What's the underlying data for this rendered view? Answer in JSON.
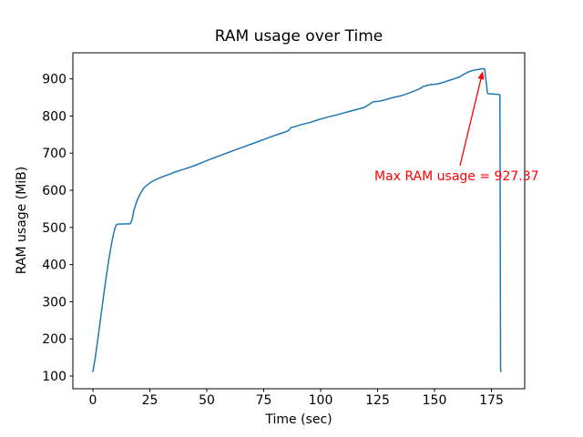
{
  "chart_data": {
    "type": "line",
    "title": "RAM usage over Time",
    "xlabel": "Time (sec)",
    "ylabel": "RAM usage (MiB)",
    "x_ticks": [
      0,
      25,
      50,
      75,
      100,
      125,
      150,
      175
    ],
    "y_ticks": [
      100,
      200,
      300,
      400,
      500,
      600,
      700,
      800,
      900
    ],
    "xlim": [
      -8.8,
      189.6
    ],
    "ylim": [
      65.7,
      970.2
    ],
    "grid": false,
    "legend": "none",
    "background_color": "#ffffff",
    "spine_color": "#000000",
    "series": [
      {
        "name": "RAM usage",
        "color": "#1f77b4",
        "points": [
          [
            0,
            112
          ],
          [
            1,
            148
          ],
          [
            2,
            192
          ],
          [
            3,
            238
          ],
          [
            4,
            284
          ],
          [
            5,
            330
          ],
          [
            6,
            374
          ],
          [
            7,
            414
          ],
          [
            8,
            450
          ],
          [
            9,
            482
          ],
          [
            10,
            504
          ],
          [
            10.6,
            509
          ],
          [
            16.4,
            510
          ],
          [
            17.2,
            521
          ],
          [
            18,
            546
          ],
          [
            19,
            566
          ],
          [
            20,
            581
          ],
          [
            21,
            593
          ],
          [
            22,
            603
          ],
          [
            23,
            610
          ],
          [
            24,
            615
          ],
          [
            25,
            620
          ],
          [
            27,
            627
          ],
          [
            30,
            635
          ],
          [
            33,
            642
          ],
          [
            36,
            649
          ],
          [
            40,
            657
          ],
          [
            44,
            665
          ],
          [
            48,
            675
          ],
          [
            52,
            685
          ],
          [
            56,
            694
          ],
          [
            60,
            703
          ],
          [
            64,
            712
          ],
          [
            68,
            721
          ],
          [
            72,
            730
          ],
          [
            76,
            739
          ],
          [
            80,
            748
          ],
          [
            84,
            756
          ],
          [
            86,
            761
          ],
          [
            87,
            769
          ],
          [
            89,
            772
          ],
          [
            91,
            776
          ],
          [
            95,
            782
          ],
          [
            99,
            790
          ],
          [
            103,
            797
          ],
          [
            107,
            803
          ],
          [
            110,
            808
          ],
          [
            113,
            813
          ],
          [
            116,
            818
          ],
          [
            119,
            823
          ],
          [
            121,
            830
          ],
          [
            123,
            838
          ],
          [
            126,
            840
          ],
          [
            129,
            845
          ],
          [
            132,
            850
          ],
          [
            135,
            854
          ],
          [
            137,
            858
          ],
          [
            139,
            862
          ],
          [
            141,
            867
          ],
          [
            143,
            872
          ],
          [
            145,
            879
          ],
          [
            147,
            883
          ],
          [
            149,
            885
          ],
          [
            151,
            886
          ],
          [
            153,
            889
          ],
          [
            155,
            893
          ],
          [
            157,
            897
          ],
          [
            159,
            901
          ],
          [
            161,
            905
          ],
          [
            163,
            913
          ],
          [
            165,
            919
          ],
          [
            167,
            923
          ],
          [
            169,
            925
          ],
          [
            170,
            926
          ],
          [
            171,
            927.37
          ],
          [
            172,
            927
          ],
          [
            172.3,
            910
          ],
          [
            172.6,
            895
          ],
          [
            172.9,
            880
          ],
          [
            173.2,
            862
          ],
          [
            173.6,
            860
          ],
          [
            178.3,
            858
          ],
          [
            178.7,
            857
          ],
          [
            179,
            120
          ],
          [
            179.2,
            112
          ]
        ]
      }
    ],
    "max_point": {
      "time_sec": 171,
      "ram_mib": 927.37
    },
    "annotation": {
      "text": "Max RAM usage = 927.37",
      "value": 927.37,
      "color": "#ff0000",
      "text_pos": [
        123.6,
        656.4
      ],
      "arrow_start": [
        161.2,
        666.2
      ],
      "arrow_tip": [
        171.2,
        921
      ]
    }
  }
}
